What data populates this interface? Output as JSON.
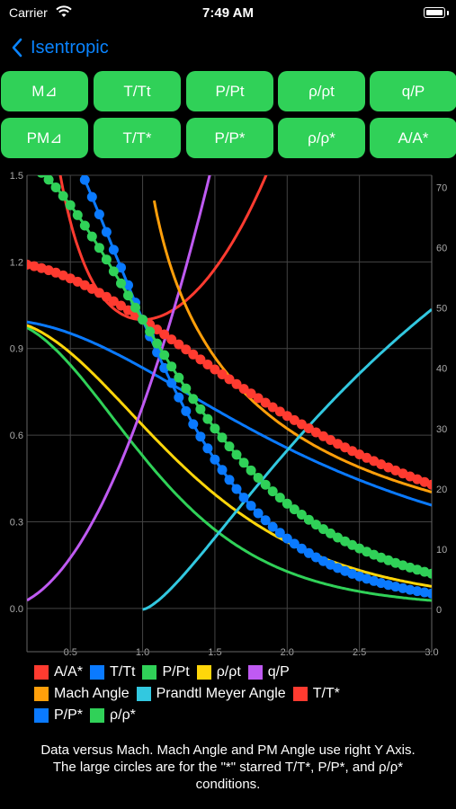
{
  "status": {
    "carrier": "Carrier",
    "time": "7:49 AM"
  },
  "nav": {
    "back_label": "Isentropic"
  },
  "buttons": {
    "row1": [
      "M⊿",
      "T/Tt",
      "P/Pt",
      "ρ/ρt",
      "q/P"
    ],
    "row2": [
      "PM⊿",
      "T/T*",
      "P/P*",
      "ρ/ρ*",
      "A/A*"
    ]
  },
  "colors": {
    "accent": "#0a84ff",
    "button": "#30d158",
    "red": "#ff3b30",
    "blue": "#0a7aff",
    "green": "#30d158",
    "yellow": "#ffd60a",
    "purple": "#bf5af2",
    "orange": "#ff9f0a",
    "cyan": "#32c8e0"
  },
  "chart_data": {
    "type": "line",
    "xlim": [
      0.2,
      3.0
    ],
    "ylim_left": [
      -0.15,
      1.5
    ],
    "ylim_right": [
      -7,
      72
    ],
    "x_ticks": [
      "0.5",
      "1.0",
      "1.5",
      "2.0",
      "2.5",
      "3.0"
    ],
    "y_ticks_left": [
      "0.0",
      "0.3",
      "0.6",
      "0.9",
      "1.2",
      "1.5"
    ],
    "y_ticks_right": [
      "0",
      "10",
      "20",
      "30",
      "40",
      "50",
      "60",
      "70"
    ],
    "series": [
      {
        "name": "A/A*",
        "key": "aas",
        "color": "#ff3b30",
        "axis": "left"
      },
      {
        "name": "T/Tt",
        "key": "tt",
        "color": "#0a7aff",
        "axis": "left"
      },
      {
        "name": "P/Pt",
        "key": "pt",
        "color": "#30d158",
        "axis": "left"
      },
      {
        "name": "ρ/ρt",
        "key": "rt",
        "color": "#ffd60a",
        "axis": "left"
      },
      {
        "name": "q/P",
        "key": "qp",
        "color": "#bf5af2",
        "axis": "left"
      },
      {
        "name": "Mach Angle",
        "key": "mu",
        "color": "#ff9f0a",
        "axis": "right"
      },
      {
        "name": "Prandtl Meyer Angle",
        "key": "nu",
        "color": "#32c8e0",
        "axis": "right"
      },
      {
        "name": "T/T*",
        "key": "ts",
        "color": "#ff3b30",
        "axis": "left",
        "dots": true
      },
      {
        "name": "P/P*",
        "key": "ps",
        "color": "#0a7aff",
        "axis": "left",
        "dots": true
      },
      {
        "name": "ρ/ρ*",
        "key": "rs",
        "color": "#30d158",
        "axis": "left",
        "dots": true
      }
    ]
  },
  "legend_rows": [
    [
      0,
      1,
      2,
      3,
      4
    ],
    [
      5,
      6,
      7
    ],
    [
      8,
      9
    ]
  ],
  "footnote": [
    "Data versus Mach.  Mach Angle and PM Angle use right Y Axis.",
    "The large circles are for the \"*\" starred T/T*, P/P*, and ρ/ρ*",
    "conditions."
  ]
}
